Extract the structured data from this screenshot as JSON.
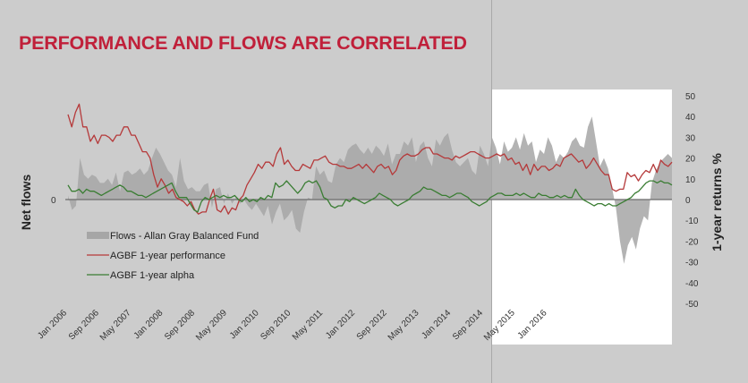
{
  "title": "PERFORMANCE AND FLOWS ARE CORRELATED",
  "chart_data": {
    "type": "line",
    "title": "PERFORMANCE AND FLOWS ARE CORRELATED",
    "xlabel": "",
    "ylabel_left": "Net flows",
    "ylabel_right": "1-year returns %",
    "left_ticks": [
      "0"
    ],
    "right_ticks": [
      50,
      40,
      30,
      20,
      10,
      0,
      -10,
      -20,
      -30,
      -40,
      -50
    ],
    "ylim": [
      -50,
      50
    ],
    "x_start": "Jan 2006",
    "x_tick_labels": [
      "Jan 2006",
      "Sep 2006",
      "May 2007",
      "Jan 2008",
      "Sep 2008",
      "May 2009",
      "Jan 2010",
      "Sep 2010",
      "May 2011",
      "Jan 2012",
      "Sep 2012",
      "May 2013",
      "Jan 2014",
      "Sep 2014",
      "May 2015",
      "Jan 2016"
    ],
    "highlight": {
      "from": "Jul 2013",
      "to": "Dec 2016",
      "color": "#ffffff"
    },
    "legend_position": "center-left",
    "series": [
      {
        "name": "Flows -  Allan Gray Balanced Fund",
        "kind": "area",
        "color": "#a6a6a6",
        "values": [
          2,
          -5,
          -3,
          20,
          12,
          10,
          12,
          11,
          8,
          8,
          10,
          7,
          13,
          4,
          13,
          14,
          12,
          13,
          15,
          12,
          14,
          20,
          25,
          22,
          18,
          14,
          12,
          6,
          20,
          9,
          5,
          6,
          4,
          4,
          7,
          8,
          -4,
          5,
          6,
          -2,
          3,
          -2,
          1,
          -2,
          0,
          -3,
          -5,
          -2,
          -5,
          -8,
          -3,
          -12,
          -6,
          -2,
          -10,
          -8,
          -5,
          -14,
          -16,
          -6,
          1,
          0,
          16,
          12,
          14,
          9,
          8,
          17,
          20,
          18,
          24,
          26,
          27,
          24,
          22,
          25,
          22,
          26,
          24,
          21,
          27,
          17,
          22,
          22,
          28,
          26,
          30,
          18,
          26,
          28,
          20,
          16,
          29,
          26,
          30,
          32,
          24,
          18,
          16,
          18,
          20,
          14,
          12,
          26,
          22,
          16,
          30,
          25,
          17,
          28,
          23,
          25,
          30,
          24,
          32,
          26,
          28,
          18,
          24,
          22,
          30,
          26,
          18,
          22,
          20,
          23,
          28,
          30,
          26,
          25,
          35,
          40,
          28,
          16,
          20,
          15,
          6,
          -4,
          -20,
          -31,
          -22,
          -18,
          -24,
          -14,
          -8,
          -10,
          8,
          14,
          18,
          20,
          22,
          20
        ]
      },
      {
        "name": "AGBF 1-year performance",
        "kind": "line",
        "color": "#b5393a",
        "values": [
          41,
          35,
          42,
          46,
          35,
          35,
          28,
          31,
          27,
          31,
          31,
          30,
          28,
          31,
          31,
          35,
          35,
          31,
          31,
          27,
          23,
          23,
          20,
          12,
          6,
          10,
          7,
          3,
          5,
          1,
          0,
          -1,
          -3,
          -1,
          -5,
          -7,
          -6,
          -6,
          0,
          5,
          -5,
          -6,
          -3,
          -7,
          -4,
          -5,
          0,
          2,
          7,
          10,
          13,
          17,
          15,
          18,
          18,
          16,
          22,
          25,
          17,
          19,
          16,
          14,
          14,
          17,
          16,
          15,
          19,
          19,
          20,
          21,
          18,
          17,
          17,
          16,
          16,
          15,
          15,
          16,
          17,
          15,
          17,
          15,
          13,
          16,
          17,
          15,
          16,
          12,
          14,
          19,
          21,
          22,
          21,
          21,
          22,
          24,
          25,
          25,
          22,
          22,
          21,
          20,
          20,
          19,
          21,
          20,
          21,
          22,
          23,
          23,
          22,
          21,
          20,
          20,
          21,
          22,
          21,
          22,
          19,
          20,
          17,
          18,
          14,
          17,
          12,
          17,
          14,
          16,
          16,
          14,
          15,
          17,
          16,
          20,
          21,
          22,
          20,
          18,
          19,
          15,
          17,
          20,
          17,
          14,
          12,
          12,
          5,
          4,
          5,
          5,
          13,
          11,
          12,
          9,
          12,
          14,
          13,
          17,
          13,
          19,
          17,
          16,
          18
        ]
      },
      {
        "name": "AGBF 1-year alpha",
        "kind": "line",
        "color": "#3a7d33",
        "values": [
          7,
          4,
          4,
          5,
          3,
          5,
          4,
          4,
          3,
          2,
          3,
          4,
          5,
          6,
          7,
          6,
          4,
          4,
          3,
          2,
          2,
          1,
          2,
          3,
          4,
          5,
          6,
          7,
          8,
          4,
          1,
          1,
          1,
          -2,
          -5,
          -6,
          -1,
          1,
          0,
          1,
          2,
          1,
          2,
          1,
          1,
          2,
          0,
          -1,
          1,
          -1,
          0,
          -1,
          1,
          0,
          2,
          1,
          8,
          6,
          7,
          9,
          7,
          5,
          3,
          5,
          8,
          9,
          8,
          9,
          6,
          1,
          0,
          -3,
          -4,
          -3,
          -3,
          0,
          -1,
          1,
          0,
          -1,
          -2,
          -1,
          0,
          1,
          3,
          2,
          1,
          0,
          -2,
          -3,
          -2,
          -1,
          0,
          2,
          3,
          4,
          6,
          5,
          5,
          4,
          3,
          2,
          2,
          1,
          2,
          3,
          3,
          2,
          1,
          -1,
          -2,
          -3,
          -2,
          -1,
          1,
          2,
          3,
          3,
          2,
          2,
          2,
          3,
          2,
          3,
          2,
          1,
          1,
          3,
          2,
          2,
          1,
          1,
          2,
          1,
          2,
          1,
          1,
          5,
          2,
          0,
          -1,
          -2,
          -3,
          -2,
          -2,
          -3,
          -2,
          -3,
          -3,
          -2,
          -1,
          0,
          1,
          3,
          4,
          6,
          8,
          9,
          9,
          8,
          9,
          8,
          8,
          7
        ]
      }
    ]
  }
}
